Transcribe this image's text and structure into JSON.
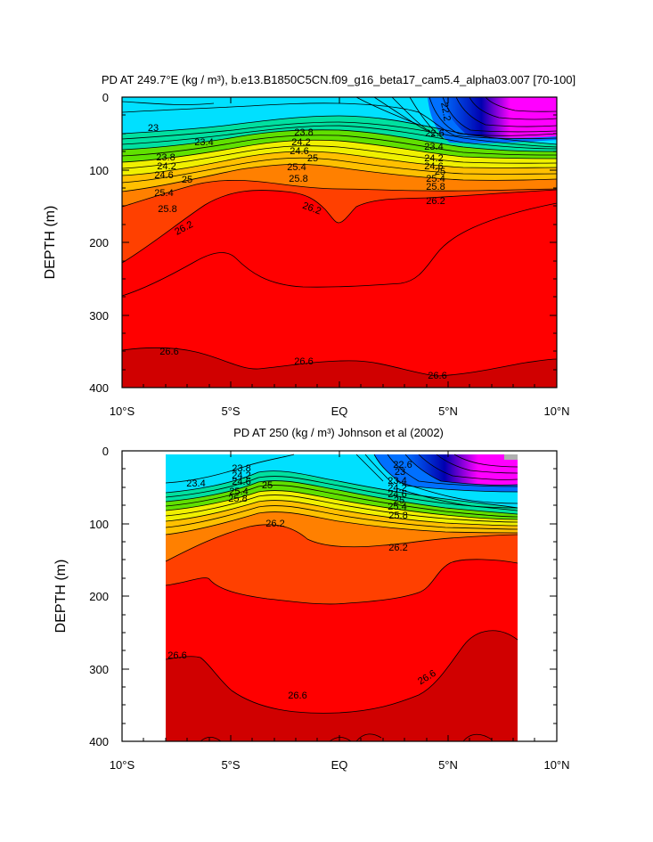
{
  "chart_data": [
    {
      "type": "contour",
      "title": "PD AT 249.7°E (kg / m³), b.e13.B1850C5CN.f09_g16_beta17_cam5.4_alpha03.007 [70-100]",
      "xlabel": "",
      "ylabel": "DEPTH (m)",
      "xlim": [
        -10,
        10
      ],
      "ylim": [
        0,
        400
      ],
      "y_inverted": true,
      "x_ticks": [
        -10,
        -5,
        0,
        5,
        10
      ],
      "x_tick_labels": [
        "10°S",
        "5°S",
        "EQ",
        "5°N",
        "10°N"
      ],
      "y_ticks": [
        0,
        100,
        200,
        300,
        400
      ],
      "y_tick_labels": [
        "0",
        "100",
        "200",
        "300",
        "400"
      ],
      "colors": [
        "#ff00ff",
        "#0000b0",
        "#0070ff",
        "#00e0ff",
        "#00e0a0",
        "#60e000",
        "#f0f000",
        "#ffc000",
        "#ff8000",
        "#ff4000",
        "#ff0000",
        "#d00000"
      ],
      "contour_labels": [
        {
          "text": "23",
          "x": -8.6,
          "y": 38
        },
        {
          "text": "23.4",
          "x": -6.1,
          "y": 58
        },
        {
          "text": "23.8",
          "x": -9.0,
          "y": 79
        },
        {
          "text": "24.2",
          "x": -8.9,
          "y": 92
        },
        {
          "text": "24.6",
          "x": -9.0,
          "y": 105
        },
        {
          "text": "25",
          "x": -6.9,
          "y": 113
        },
        {
          "text": "25.4",
          "x": -9.0,
          "y": 130
        },
        {
          "text": "25.8",
          "x": -7.9,
          "y": 152
        },
        {
          "text": "26.2",
          "x": -7.0,
          "y": 178
        },
        {
          "text": "23.8",
          "x": -1.6,
          "y": 50
        },
        {
          "text": "24.2",
          "x": -1.6,
          "y": 63
        },
        {
          "text": "24.6",
          "x": -1.6,
          "y": 77
        },
        {
          "text": "25",
          "x": -1.2,
          "y": 85
        },
        {
          "text": "25.4",
          "x": -1.9,
          "y": 96
        },
        {
          "text": "25.8",
          "x": -1.8,
          "y": 111
        },
        {
          "text": "26.2",
          "x": -1.2,
          "y": 150
        },
        {
          "text": "22.2",
          "x": 4.8,
          "y": 20
        },
        {
          "text": "22.6",
          "x": 4.4,
          "y": 50
        },
        {
          "text": "23.4",
          "x": 4.4,
          "y": 66
        },
        {
          "text": "24.2",
          "x": 4.4,
          "y": 84
        },
        {
          "text": "24.6",
          "x": 4.4,
          "y": 94
        },
        {
          "text": "25",
          "x": 4.6,
          "y": 104
        },
        {
          "text": "25.4",
          "x": 4.5,
          "y": 113
        },
        {
          "text": "25.8",
          "x": 4.5,
          "y": 123
        },
        {
          "text": "26.2",
          "x": 4.5,
          "y": 141
        },
        {
          "text": "26.6",
          "x": -7.9,
          "y": 354
        },
        {
          "text": "26.6",
          "x": -1.6,
          "y": 361
        },
        {
          "text": "26.6",
          "x": 4.6,
          "y": 383
        }
      ]
    },
    {
      "type": "contour",
      "title": "PD AT 250 (kg / m³) Johnson et al (2002)",
      "xlabel": "",
      "ylabel": "DEPTH (m)",
      "xlim": [
        -10,
        10
      ],
      "ylim": [
        0,
        400
      ],
      "y_inverted": true,
      "data_x_range": [
        -8.0,
        8.2
      ],
      "x_ticks": [
        -10,
        -5,
        0,
        5,
        10
      ],
      "x_tick_labels": [
        "10°S",
        "5°S",
        "EQ",
        "5°N",
        "10°N"
      ],
      "y_ticks": [
        0,
        100,
        200,
        300,
        400
      ],
      "y_tick_labels": [
        "0",
        "100",
        "200",
        "300",
        "400"
      ],
      "colors": [
        "#ff00ff",
        "#0000b0",
        "#0070ff",
        "#00e0ff",
        "#00e0a0",
        "#60e000",
        "#f0f000",
        "#ffc000",
        "#ff8000",
        "#ff4000",
        "#ff0000",
        "#d00000"
      ],
      "contour_labels": [
        {
          "text": "23.4",
          "x": -6.5,
          "y": 45
        },
        {
          "text": "23.8",
          "x": -4.5,
          "y": 23
        },
        {
          "text": "24.2",
          "x": -4.5,
          "y": 33
        },
        {
          "text": "24.6",
          "x": -4.5,
          "y": 41
        },
        {
          "text": "25",
          "x": -3.2,
          "y": 47
        },
        {
          "text": "25.4",
          "x": -4.5,
          "y": 55
        },
        {
          "text": "25.8",
          "x": -4.5,
          "y": 65
        },
        {
          "text": "26.2",
          "x": -2.9,
          "y": 102
        },
        {
          "text": "22.6",
          "x": 1.9,
          "y": 20
        },
        {
          "text": "23",
          "x": 1.8,
          "y": 30
        },
        {
          "text": "23.4",
          "x": 2.2,
          "y": 40
        },
        {
          "text": "24.2",
          "x": 2.2,
          "y": 50
        },
        {
          "text": "24.6",
          "x": 2.2,
          "y": 58
        },
        {
          "text": "25",
          "x": 2.3,
          "y": 66
        },
        {
          "text": "25.4",
          "x": 2.2,
          "y": 74
        },
        {
          "text": "25.8",
          "x": 2.7,
          "y": 88
        },
        {
          "text": "26.2",
          "x": 2.7,
          "y": 132
        },
        {
          "text": "26.6",
          "x": -7.9,
          "y": 282
        },
        {
          "text": "26.6",
          "x": -1.9,
          "y": 336
        },
        {
          "text": "26.6",
          "x": 4.2,
          "y": 312
        }
      ]
    }
  ]
}
